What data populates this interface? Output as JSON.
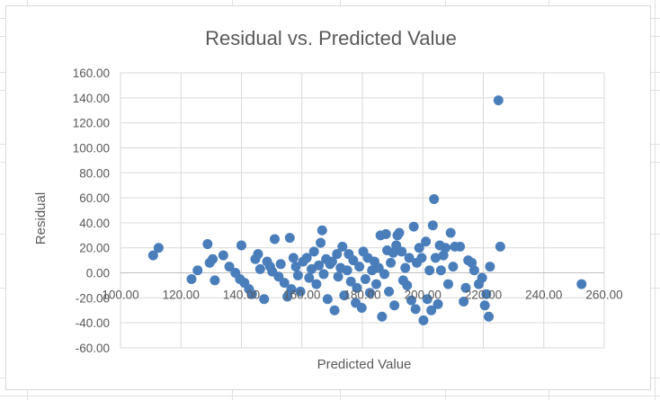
{
  "chart_data": {
    "type": "scatter",
    "title": "Residual vs. Predicted Value",
    "xlabel": "Predicted Value",
    "ylabel": "Residual",
    "xlim": [
      100,
      260
    ],
    "ylim": [
      -60,
      160
    ],
    "x_ticks": [
      "100.00",
      "120.00",
      "140.00",
      "160.00",
      "180.00",
      "200.00",
      "220.00",
      "240.00",
      "260.00"
    ],
    "y_ticks": [
      "160.00",
      "140.00",
      "120.00",
      "100.00",
      "80.00",
      "60.00",
      "40.00",
      "20.00",
      "0.00",
      "-20.00",
      "-40.00",
      "-60.00"
    ],
    "grid": true,
    "legend": "none",
    "marker_color": "#4a7ebb",
    "points": [
      [
        110.8,
        14
      ],
      [
        112.6,
        20
      ],
      [
        123.5,
        -5
      ],
      [
        125.5,
        2
      ],
      [
        128.8,
        23
      ],
      [
        129.5,
        8
      ],
      [
        130.5,
        11
      ],
      [
        131.2,
        -6
      ],
      [
        134,
        14
      ],
      [
        136,
        5
      ],
      [
        138,
        0
      ],
      [
        139.5,
        -5
      ],
      [
        140,
        22
      ],
      [
        141,
        -8
      ],
      [
        142.5,
        -13
      ],
      [
        143.5,
        -17
      ],
      [
        144.6,
        11
      ],
      [
        145.5,
        15
      ],
      [
        146.2,
        3
      ],
      [
        147.5,
        -21
      ],
      [
        148.5,
        9
      ],
      [
        149.5,
        5
      ],
      [
        150.2,
        1
      ],
      [
        151,
        27
      ],
      [
        152.3,
        -3
      ],
      [
        153,
        7
      ],
      [
        154.2,
        -8
      ],
      [
        155.2,
        -19
      ],
      [
        156,
        28
      ],
      [
        156.5,
        -13
      ],
      [
        157.2,
        12
      ],
      [
        158,
        5
      ],
      [
        158.7,
        -2
      ],
      [
        159.5,
        -15
      ],
      [
        160.4,
        9
      ],
      [
        161.6,
        12
      ],
      [
        162.4,
        -4
      ],
      [
        163.2,
        3
      ],
      [
        164,
        17
      ],
      [
        164.8,
        -9
      ],
      [
        165.6,
        6
      ],
      [
        166.2,
        24
      ],
      [
        166.7,
        34
      ],
      [
        167.2,
        -1
      ],
      [
        168,
        11
      ],
      [
        168.5,
        -21
      ],
      [
        169.3,
        7
      ],
      [
        170,
        9
      ],
      [
        170.8,
        -30
      ],
      [
        171.6,
        15
      ],
      [
        172,
        -3
      ],
      [
        172.8,
        4
      ],
      [
        173.4,
        21
      ],
      [
        174,
        -18
      ],
      [
        175,
        2
      ],
      [
        175.5,
        15
      ],
      [
        176.2,
        -7
      ],
      [
        177,
        10
      ],
      [
        177.8,
        -24
      ],
      [
        178.2,
        -12
      ],
      [
        179,
        5
      ],
      [
        179.8,
        -28
      ],
      [
        180.3,
        17
      ],
      [
        181,
        -5
      ],
      [
        181.8,
        12
      ],
      [
        182.5,
        -16
      ],
      [
        183.2,
        2
      ],
      [
        184,
        9
      ],
      [
        184.6,
        -9
      ],
      [
        185.4,
        4
      ],
      [
        186,
        30
      ],
      [
        186.5,
        -35
      ],
      [
        187.3,
        -1
      ],
      [
        187.8,
        31
      ],
      [
        188.2,
        18
      ],
      [
        188.8,
        -15
      ],
      [
        189.4,
        8
      ],
      [
        190.2,
        16
      ],
      [
        190.6,
        -26
      ],
      [
        191.2,
        22
      ],
      [
        191.6,
        30
      ],
      [
        192.2,
        32
      ],
      [
        193,
        17
      ],
      [
        193.5,
        -6
      ],
      [
        194.2,
        4
      ],
      [
        194.8,
        -10
      ],
      [
        195.5,
        12
      ],
      [
        196.2,
        -22
      ],
      [
        197,
        37
      ],
      [
        197.6,
        -29
      ],
      [
        198,
        8
      ],
      [
        198.8,
        20
      ],
      [
        199.6,
        12
      ],
      [
        200.2,
        -38
      ],
      [
        201,
        25
      ],
      [
        201.5,
        -21
      ],
      [
        202.2,
        2
      ],
      [
        202.8,
        -30
      ],
      [
        203.3,
        38
      ],
      [
        203.7,
        59
      ],
      [
        204.2,
        12
      ],
      [
        205,
        -25
      ],
      [
        205.6,
        22
      ],
      [
        206,
        2
      ],
      [
        206.8,
        14
      ],
      [
        207.5,
        20
      ],
      [
        208.4,
        -9
      ],
      [
        209.2,
        32
      ],
      [
        210,
        5
      ],
      [
        210.6,
        21
      ],
      [
        212.3,
        21
      ],
      [
        213.5,
        -23
      ],
      [
        214.2,
        -12
      ],
      [
        215,
        10
      ],
      [
        216.2,
        8
      ],
      [
        217,
        2
      ],
      [
        218.5,
        -9
      ],
      [
        219.6,
        -4
      ],
      [
        220.5,
        -26
      ],
      [
        221,
        -17
      ],
      [
        221.8,
        -35
      ],
      [
        222.2,
        5
      ],
      [
        225,
        138
      ],
      [
        225.6,
        21
      ],
      [
        252.5,
        -9
      ]
    ]
  }
}
